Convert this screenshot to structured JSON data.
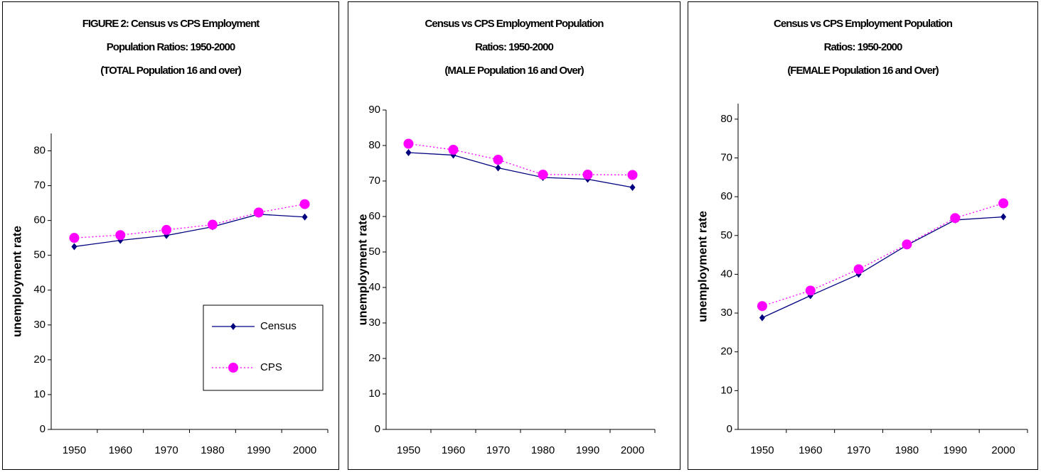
{
  "chart_data": [
    {
      "type": "line",
      "title": [
        "FIGURE 2: Census vs CPS Employment",
        "Population Ratios: 1950-2000",
        "(TOTAL Population 16 and over)"
      ],
      "y_label": "unemployment rate",
      "categories": [
        "1950",
        "1960",
        "1970",
        "1980",
        "1990",
        "2000"
      ],
      "series": [
        {
          "name": "Census",
          "color": "#000080",
          "values": [
            52.5,
            54.3,
            55.7,
            58.2,
            61.8,
            61
          ]
        },
        {
          "name": "CPS",
          "color": "#ff00ff",
          "values": [
            55,
            55.8,
            57.3,
            58.8,
            62.3,
            64.7
          ]
        }
      ],
      "ylim": [
        0,
        85
      ],
      "yticks": [
        0,
        10,
        20,
        30,
        40,
        50,
        60,
        70,
        80
      ],
      "legend": "lower right"
    },
    {
      "type": "line",
      "title": [
        "Census vs CPS Employment Population",
        "Ratios: 1950-2000",
        "(MALE Population 16 and Over)"
      ],
      "y_label": "unemployment rate",
      "categories": [
        "1950",
        "1960",
        "1970",
        "1980",
        "1990",
        "2000"
      ],
      "series": [
        {
          "name": "Census",
          "color": "#000080",
          "values": [
            78,
            77.3,
            73.7,
            71,
            70.5,
            68.2
          ]
        },
        {
          "name": "CPS",
          "color": "#ff00ff",
          "values": [
            80.5,
            78.8,
            76,
            71.8,
            71.8,
            71.7
          ]
        }
      ],
      "ylim": [
        0,
        90
      ],
      "yticks": [
        0,
        10,
        20,
        30,
        40,
        50,
        60,
        70,
        80,
        90
      ]
    },
    {
      "type": "line",
      "title": [
        "Census vs CPS Employment Population",
        "Ratios: 1950-2000",
        "(FEMALE Population 16 and Over)"
      ],
      "y_label": "unemployment rate",
      "categories": [
        "1950",
        "1960",
        "1970",
        "1980",
        "1990",
        "2000"
      ],
      "series": [
        {
          "name": "Census",
          "color": "#000080",
          "values": [
            28.8,
            34.5,
            40,
            47.5,
            54,
            54.8
          ]
        },
        {
          "name": "CPS",
          "color": "#ff00ff",
          "values": [
            31.8,
            35.8,
            41.3,
            47.7,
            54.5,
            58.3
          ]
        }
      ],
      "ylim": [
        0,
        84
      ],
      "yticks": [
        0,
        10,
        20,
        30,
        40,
        50,
        60,
        70,
        80
      ]
    }
  ]
}
